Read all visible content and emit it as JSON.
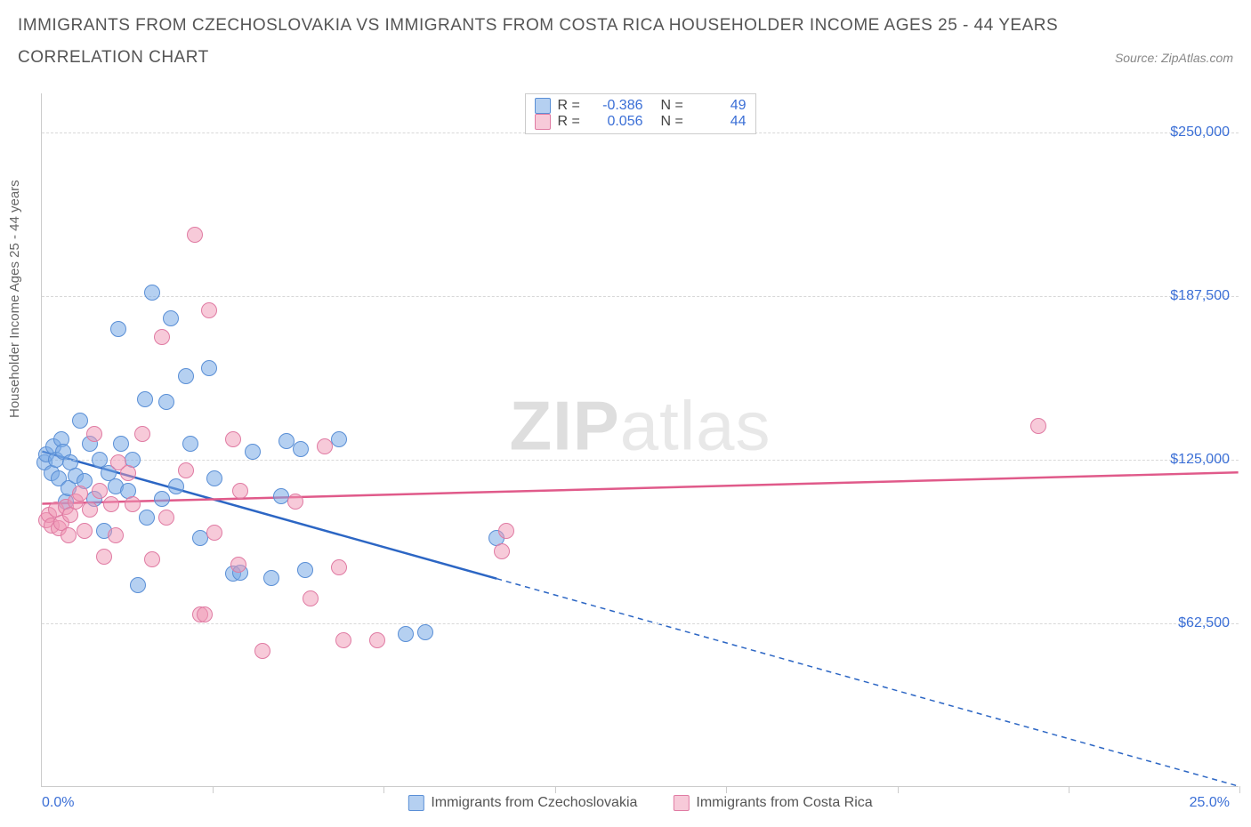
{
  "header": {
    "title_line1": "IMMIGRANTS FROM CZECHOSLOVAKIA VS IMMIGRANTS FROM COSTA RICA HOUSEHOLDER INCOME AGES 25 - 44 YEARS",
    "title_line2": "CORRELATION CHART",
    "source_label": "Source: ZipAtlas.com"
  },
  "chart": {
    "type": "scatter",
    "ylabel": "Householder Income Ages 25 - 44 years",
    "xlim": [
      0,
      25
    ],
    "ylim": [
      0,
      265000
    ],
    "x_min_label": "0.0%",
    "x_max_label": "25.0%",
    "y_ticks": [
      62500,
      125000,
      187500,
      250000
    ],
    "y_tick_labels": [
      "$62,500",
      "$125,000",
      "$187,500",
      "$250,000"
    ],
    "x_tick_positions": [
      3.57,
      7.14,
      10.71,
      14.29,
      17.86,
      21.43,
      25.0
    ],
    "background_color": "#ffffff",
    "grid_color": "#d8d8d8",
    "axis_color": "#cccccc",
    "tick_label_color": "#3b6fd6",
    "ylabel_fontsize": 15,
    "tick_fontsize": 16,
    "watermark": "ZIPatlas",
    "series": [
      {
        "name": "Immigrants from Czechoslovakia",
        "key": "czech",
        "point_fill": "rgba(120,170,230,0.55)",
        "point_stroke": "#5a8fd6",
        "line_color": "#2c66c4",
        "R": "-0.386",
        "N": "49",
        "trend": {
          "x1": 0,
          "y1": 128000,
          "x2": 25,
          "y2": 0,
          "solid_until_x": 9.5
        },
        "points": [
          [
            0.05,
            124000
          ],
          [
            0.1,
            127000
          ],
          [
            0.2,
            120000
          ],
          [
            0.25,
            130000
          ],
          [
            0.3,
            125000
          ],
          [
            0.35,
            118000
          ],
          [
            0.4,
            133000
          ],
          [
            0.45,
            128000
          ],
          [
            0.5,
            109000
          ],
          [
            0.55,
            114000
          ],
          [
            0.6,
            124000
          ],
          [
            0.7,
            119000
          ],
          [
            0.8,
            140000
          ],
          [
            0.9,
            117000
          ],
          [
            1.0,
            131000
          ],
          [
            1.1,
            110000
          ],
          [
            1.2,
            125000
          ],
          [
            1.3,
            98000
          ],
          [
            1.4,
            120000
          ],
          [
            1.55,
            115000
          ],
          [
            1.6,
            175000
          ],
          [
            1.65,
            131000
          ],
          [
            1.8,
            113000
          ],
          [
            1.9,
            125000
          ],
          [
            2.0,
            77000
          ],
          [
            2.15,
            148000
          ],
          [
            2.2,
            103000
          ],
          [
            2.3,
            189000
          ],
          [
            2.5,
            110000
          ],
          [
            2.6,
            147000
          ],
          [
            2.7,
            179000
          ],
          [
            2.8,
            115000
          ],
          [
            3.0,
            157000
          ],
          [
            3.1,
            131000
          ],
          [
            3.3,
            95000
          ],
          [
            3.5,
            160000
          ],
          [
            3.6,
            118000
          ],
          [
            4.0,
            81500
          ],
          [
            4.15,
            82000
          ],
          [
            4.4,
            128000
          ],
          [
            5.0,
            111000
          ],
          [
            5.1,
            132000
          ],
          [
            5.4,
            129000
          ],
          [
            5.5,
            83000
          ],
          [
            6.2,
            133000
          ],
          [
            7.6,
            58500
          ],
          [
            8.0,
            59000
          ],
          [
            9.5,
            95000
          ],
          [
            4.8,
            80000
          ]
        ]
      },
      {
        "name": "Immigrants from Costa Rica",
        "key": "costa",
        "point_fill": "rgba(240,150,180,0.5)",
        "point_stroke": "#e07ba3",
        "line_color": "#e05a8a",
        "R": "0.056",
        "N": "44",
        "trend": {
          "x1": 0,
          "y1": 108000,
          "x2": 25,
          "y2": 120000,
          "solid_until_x": 25
        },
        "points": [
          [
            0.1,
            102000
          ],
          [
            0.15,
            104000
          ],
          [
            0.2,
            100000
          ],
          [
            0.3,
            106000
          ],
          [
            0.35,
            99000
          ],
          [
            0.4,
            101000
          ],
          [
            0.5,
            107000
          ],
          [
            0.55,
            96000
          ],
          [
            0.6,
            104000
          ],
          [
            0.7,
            109000
          ],
          [
            0.8,
            112000
          ],
          [
            0.9,
            98000
          ],
          [
            1.0,
            106000
          ],
          [
            1.1,
            135000
          ],
          [
            1.2,
            113000
          ],
          [
            1.3,
            88000
          ],
          [
            1.45,
            108000
          ],
          [
            1.55,
            96000
          ],
          [
            1.6,
            124000
          ],
          [
            1.8,
            120000
          ],
          [
            1.9,
            108000
          ],
          [
            2.1,
            135000
          ],
          [
            2.3,
            87000
          ],
          [
            2.5,
            172000
          ],
          [
            2.6,
            103000
          ],
          [
            3.0,
            121000
          ],
          [
            3.2,
            211000
          ],
          [
            3.3,
            66000
          ],
          [
            3.4,
            66000
          ],
          [
            3.5,
            182000
          ],
          [
            3.6,
            97000
          ],
          [
            4.0,
            133000
          ],
          [
            4.1,
            85000
          ],
          [
            4.15,
            113000
          ],
          [
            4.6,
            52000
          ],
          [
            5.3,
            109000
          ],
          [
            5.6,
            72000
          ],
          [
            5.9,
            130000
          ],
          [
            6.2,
            84000
          ],
          [
            6.3,
            56000
          ],
          [
            7.0,
            56000
          ],
          [
            9.6,
            90000
          ],
          [
            9.7,
            98000
          ],
          [
            20.8,
            138000
          ]
        ]
      }
    ],
    "legend_top": {
      "R_label": "R =",
      "N_label": "N ="
    },
    "legend_bottom": [
      {
        "swatch_fill": "rgba(120,170,230,0.55)",
        "swatch_stroke": "#5a8fd6",
        "label_key": "chart.series.0.name"
      },
      {
        "swatch_fill": "rgba(240,150,180,0.5)",
        "swatch_stroke": "#e07ba3",
        "label_key": "chart.series.1.name"
      }
    ]
  }
}
